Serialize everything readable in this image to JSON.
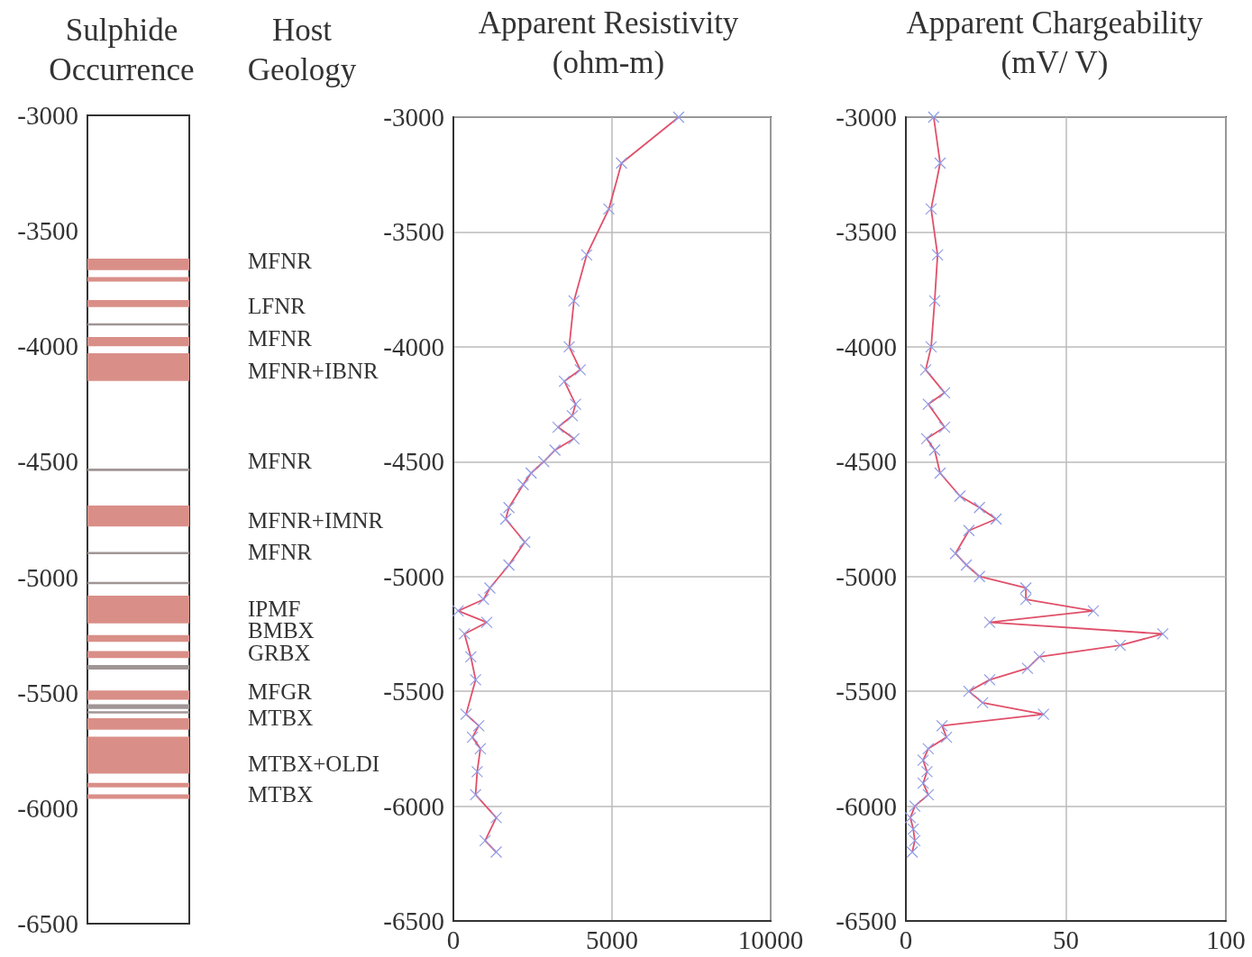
{
  "chart_data": [
    {
      "type": "bar",
      "title": "Sulphide Occurrence",
      "categories": [
        null
      ],
      "ylim": [
        -6500,
        -3000
      ],
      "yticks": [
        -3000,
        -3500,
        -4000,
        -4500,
        -5000,
        -5500,
        -6000,
        -6500
      ],
      "tick_labels": "y",
      "series": [
        {
          "color": "#d98f88",
          "base": [
            -3670
          ],
          "values": [
            50
          ]
        },
        {
          "color": "#d98f88",
          "base": [
            -3720
          ],
          "values": [
            20
          ]
        },
        {
          "color": "#d98f88",
          "base": [
            -3830
          ],
          "values": [
            30
          ]
        },
        {
          "color": "#a09595",
          "base": [
            -3910
          ],
          "values": [
            10
          ]
        },
        {
          "color": "#d98f88",
          "base": [
            -4000
          ],
          "values": [
            40
          ]
        },
        {
          "color": "#d98f88",
          "base": [
            -4150
          ],
          "values": [
            120
          ]
        },
        {
          "color": "#a09595",
          "base": [
            -4540
          ],
          "values": [
            10
          ]
        },
        {
          "color": "#d98f88",
          "base": [
            -4780
          ],
          "values": [
            90
          ]
        },
        {
          "color": "#a09595",
          "base": [
            -4900
          ],
          "values": [
            10
          ]
        },
        {
          "color": "#a09595",
          "base": [
            -5030
          ],
          "values": [
            10
          ]
        },
        {
          "color": "#d98f88",
          "base": [
            -5200
          ],
          "values": [
            120
          ]
        },
        {
          "color": "#d98f88",
          "base": [
            -5280
          ],
          "values": [
            30
          ]
        },
        {
          "color": "#d98f88",
          "base": [
            -5350
          ],
          "values": [
            30
          ]
        },
        {
          "color": "#a09595",
          "base": [
            -5400
          ],
          "values": [
            20
          ]
        },
        {
          "color": "#d98f88",
          "base": [
            -5530
          ],
          "values": [
            40
          ]
        },
        {
          "color": "#a09595",
          "base": [
            -5570
          ],
          "values": [
            20
          ]
        },
        {
          "color": "#a09595",
          "base": [
            -5590
          ],
          "values": [
            10
          ]
        },
        {
          "color": "#d98f88",
          "base": [
            -5660
          ],
          "values": [
            50
          ]
        },
        {
          "color": "#d98f88",
          "base": [
            -5850
          ],
          "values": [
            160
          ]
        },
        {
          "color": "#d98f88",
          "base": [
            -5910
          ],
          "values": [
            20
          ]
        },
        {
          "color": "#d98f88",
          "base": [
            -5960
          ],
          "values": [
            20
          ]
        }
      ],
      "annotations": [
        "Host Geology",
        "MFNR",
        "LFNR",
        "MFNR",
        "MFNR+IBNR",
        "MFNR",
        "MFNR+IMNR",
        "MFNR",
        "IPMF",
        "BMBX",
        "GRBX",
        "MFGR",
        "MTBX",
        "MTBX+OLDI",
        "MTBX"
      ]
    },
    {
      "type": "line",
      "title": "Apparent Resistivity (ohm-m)",
      "xlim": [
        0,
        10000
      ],
      "xticks": [
        0,
        5000,
        10000
      ],
      "ylim": [
        -6500,
        -3000
      ],
      "yticks": [
        -3000,
        -3500,
        -4000,
        -4500,
        -5000,
        -5500,
        -6000,
        -6500
      ],
      "grid": true,
      "marker": "cross",
      "line_style": "solid",
      "series": [
        {
          "color": "#e0506a",
          "x": [
            7100,
            5300,
            4900,
            4200,
            3800,
            3650,
            4000,
            3500,
            3850,
            3750,
            3300,
            3800,
            3200,
            2850,
            2450,
            2200,
            1750,
            1650,
            2250,
            1750,
            1150,
            950,
            150,
            1050,
            350,
            550,
            700,
            400,
            800,
            600,
            850,
            750,
            700,
            1350,
            1000,
            1350
          ],
          "values": [
            -3000,
            -3200,
            -3400,
            -3600,
            -3800,
            -4000,
            -4100,
            -4150,
            -4250,
            -4300,
            -4350,
            -4400,
            -4450,
            -4500,
            -4550,
            -4600,
            -4700,
            -4750,
            -4850,
            -4950,
            -5050,
            -5100,
            -5150,
            -5200,
            -5250,
            -5350,
            -5450,
            -5600,
            -5650,
            -5700,
            -5750,
            -5850,
            -5950,
            -6050,
            -6150,
            -6200
          ]
        }
      ]
    },
    {
      "type": "line",
      "title": "Apparent Chargeability (mV/ V)",
      "xlim": [
        0,
        100
      ],
      "xticks": [
        0,
        50,
        100
      ],
      "ylim": [
        -6500,
        -3000
      ],
      "yticks": [
        -3000,
        -3500,
        -4000,
        -4500,
        -5000,
        -5500,
        -6000,
        -6500
      ],
      "grid": true,
      "marker": "cross",
      "line_style": "solid",
      "series": [
        {
          "color": "#e0506a",
          "x": [
            8.7,
            10.7,
            7.9,
            9.9,
            9.0,
            7.9,
            6.2,
            12.1,
            7.0,
            12.1,
            6.5,
            9.0,
            10.7,
            16.9,
            23.0,
            28.2,
            19.7,
            15.5,
            18.9,
            23.0,
            37.5,
            37.5,
            58.6,
            26.2,
            80.3,
            67.0,
            41.7,
            38.0,
            26.2,
            19.7,
            24.0,
            43.0,
            11.3,
            12.7,
            7.0,
            5.4,
            6.6,
            5.4,
            7.0,
            2.8,
            1.4,
            2.3,
            2.8,
            2.0
          ],
          "values": [
            -3000,
            -3200,
            -3400,
            -3600,
            -3800,
            -4000,
            -4100,
            -4200,
            -4250,
            -4350,
            -4400,
            -4450,
            -4550,
            -4650,
            -4700,
            -4750,
            -4800,
            -4900,
            -4950,
            -5000,
            -5050,
            -5100,
            -5150,
            -5200,
            -5250,
            -5300,
            -5350,
            -5400,
            -5450,
            -5500,
            -5550,
            -5600,
            -5650,
            -5700,
            -5750,
            -5800,
            -5850,
            -5900,
            -5950,
            -6000,
            -6050,
            -6100,
            -6150,
            -6200
          ]
        }
      ]
    }
  ]
}
